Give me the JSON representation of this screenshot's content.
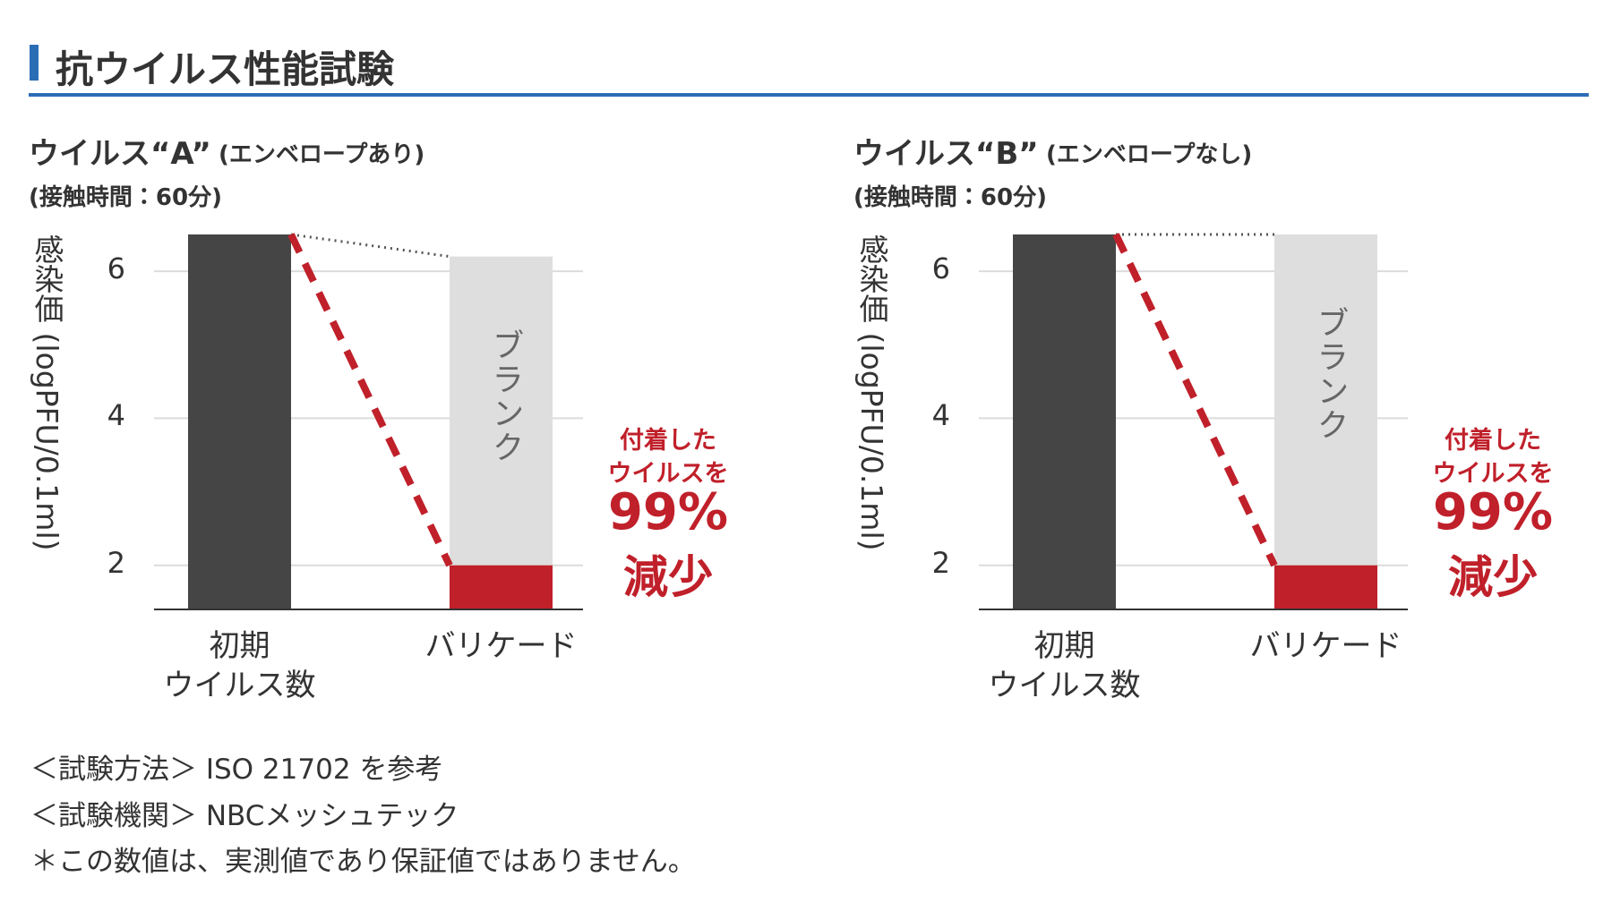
{
  "header": {
    "title": "抗ウイルス性能試験"
  },
  "chart_data": [
    {
      "type": "bar",
      "title": "ウイルス“A”",
      "title_note": "(エンベロープあり)",
      "subtitle": "(接触時間：60分)",
      "ylabel": "感染価 (logPFU/0.1ml)",
      "categories": [
        "初期\nウイルス数",
        "バリケード"
      ],
      "values": [
        6.5,
        2.0
      ],
      "colors": [
        "#454545",
        "#c0202a"
      ],
      "blank": {
        "label": "ブランク",
        "value": 6.2,
        "color": "#dedede"
      },
      "annotation": {
        "lines": [
          "付着した",
          "ウイルスを"
        ],
        "highlight": [
          "99%",
          "減少"
        ],
        "color": "#c0202a"
      },
      "ylim": [
        1.4,
        6.5
      ],
      "yticks": [
        2,
        4,
        6
      ],
      "grid": true
    },
    {
      "type": "bar",
      "title": "ウイルス“B”",
      "title_note": "(エンベロープなし)",
      "subtitle": "(接触時間：60分)",
      "ylabel": "感染価 (logPFU/0.1ml)",
      "categories": [
        "初期\nウイルス数",
        "バリケード"
      ],
      "values": [
        6.5,
        2.0
      ],
      "colors": [
        "#454545",
        "#c0202a"
      ],
      "blank": {
        "label": "ブランク",
        "value": 6.5,
        "color": "#dedede"
      },
      "annotation": {
        "lines": [
          "付着した",
          "ウイルスを"
        ],
        "highlight": [
          "99%",
          "減少"
        ],
        "color": "#c0202a"
      },
      "ylim": [
        1.4,
        6.5
      ],
      "yticks": [
        2,
        4,
        6
      ],
      "grid": true
    }
  ],
  "notes": [
    "＜試験方法＞ ISO 21702 を参考",
    "＜試験機関＞ NBCメッシュテック",
    "＊この数値は、実測値であり保証値ではありません。"
  ]
}
